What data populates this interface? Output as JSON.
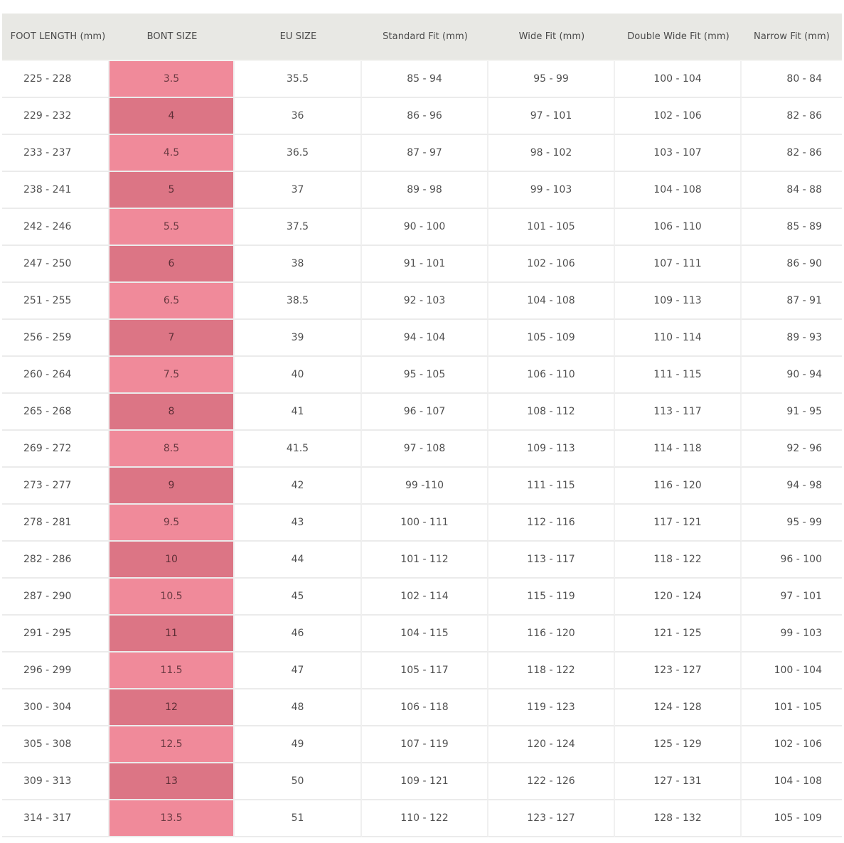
{
  "table": {
    "headers": [
      "FOOT LENGTH (mm)",
      "BONT SIZE",
      "EU SIZE",
      "Standard Fit (mm)",
      "Wide Fit (mm)",
      "Double Wide Fit (mm)",
      "Narrow Fit (mm)"
    ],
    "rows": [
      [
        "225 - 228",
        "3.5",
        "35.5",
        "85 - 94",
        "95 - 99",
        "100 - 104",
        "80 - 84"
      ],
      [
        "229 - 232",
        "4",
        "36",
        "86 - 96",
        "97 - 101",
        "102 - 106",
        "82 - 86"
      ],
      [
        "233 - 237",
        "4.5",
        "36.5",
        "87 - 97",
        "98 - 102",
        "103 - 107",
        "82 - 86"
      ],
      [
        "238 - 241",
        "5",
        "37",
        "89 - 98",
        "99 - 103",
        "104 - 108",
        "84 - 88"
      ],
      [
        "242 - 246",
        "5.5",
        "37.5",
        "90 - 100",
        "101 - 105",
        "106 - 110",
        "85 - 89"
      ],
      [
        "247 - 250",
        "6",
        "38",
        "91 - 101",
        "102 - 106",
        "107 - 111",
        "86 - 90"
      ],
      [
        "251 - 255",
        "6.5",
        "38.5",
        "92 - 103",
        "104 - 108",
        "109 - 113",
        "87 - 91"
      ],
      [
        "256 - 259",
        "7",
        "39",
        "94 - 104",
        "105 - 109",
        "110 - 114",
        "89 - 93"
      ],
      [
        "260 - 264",
        "7.5",
        "40",
        "95 - 105",
        "106 - 110",
        "111 - 115",
        "90 - 94"
      ],
      [
        "265 - 268",
        "8",
        "41",
        "96 - 107",
        "108 - 112",
        "113 - 117",
        "91 - 95"
      ],
      [
        "269 - 272",
        "8.5",
        "41.5",
        "97 - 108",
        "109 - 113",
        "114 - 118",
        "92 - 96"
      ],
      [
        "273 - 277",
        "9",
        "42",
        "99 -110",
        "111 - 115",
        "116 - 120",
        "94 - 98"
      ],
      [
        "278 - 281",
        "9.5",
        "43",
        "100 - 111",
        "112 - 116",
        "117 - 121",
        "95 - 99"
      ],
      [
        "282 - 286",
        "10",
        "44",
        "101 - 112",
        "113 - 117",
        "118 - 122",
        "96 - 100"
      ],
      [
        "287 - 290",
        "10.5",
        "45",
        "102 - 114",
        "115 - 119",
        "120 - 124",
        "97 - 101"
      ],
      [
        "291 - 295",
        "11",
        "46",
        "104 - 115",
        "116 - 120",
        "121 - 125",
        "99 - 103"
      ],
      [
        "296 - 299",
        "11.5",
        "47",
        "105 - 117",
        "118 - 122",
        "123 - 127",
        "100 - 104"
      ],
      [
        "300 - 304",
        "12",
        "48",
        "106 - 118",
        "119 - 123",
        "124 - 128",
        "101 - 105"
      ],
      [
        "305 - 308",
        "12.5",
        "49",
        "107 - 119",
        "120 - 124",
        "125 - 129",
        "102 - 106"
      ],
      [
        "309 - 313",
        "13",
        "50",
        "109 - 121",
        "122 - 126",
        "127 - 131",
        "104 - 108"
      ],
      [
        "314 - 317",
        "13.5",
        "51",
        "110 - 122",
        "123 - 127",
        "128 - 132",
        "105 - 109"
      ]
    ]
  },
  "colors": {
    "header_bg": "#e8e8e4",
    "bont_light": "#f08a9a",
    "bont_dark": "#dc7585"
  }
}
